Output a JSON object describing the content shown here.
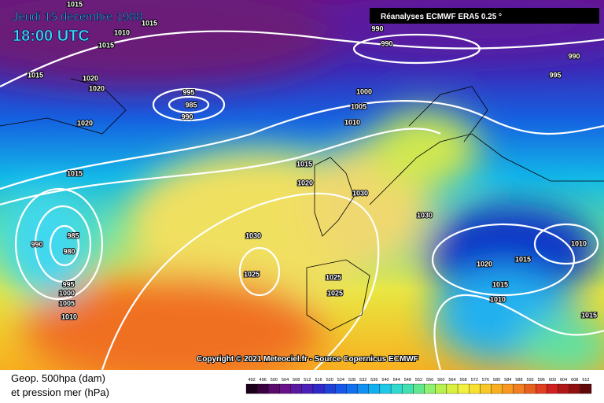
{
  "header": {
    "title": "Jeudi 15 decembre 1988",
    "time": "18:00 UTC",
    "source": "Réanalyses ECMWF ERA5 0.25 °"
  },
  "copyright": "Copyright © 2021 Meteociel.fr - Source Copernicus ECMWF",
  "legend": {
    "line1": "Geop. 500hpa (dam)",
    "line2": "et pression mer (hPa)",
    "scale": [
      492,
      496,
      500,
      504,
      508,
      512,
      516,
      520,
      524,
      528,
      532,
      536,
      540,
      544,
      548,
      552,
      556,
      560,
      564,
      568,
      572,
      576,
      580,
      584,
      588,
      592,
      596,
      600,
      604,
      608,
      612
    ]
  },
  "isobar_labels": [
    1015,
    1015,
    1010,
    1015,
    1015,
    1020,
    1020,
    995,
    985,
    990,
    1020,
    990,
    990,
    990,
    995,
    1000,
    1005,
    1010,
    1015,
    1015,
    1020,
    1030,
    1030,
    1030,
    985,
    990,
    980,
    1025,
    1025,
    1025,
    995,
    1000,
    1005,
    1010,
    1020,
    1015,
    1010,
    1015,
    1010,
    1015
  ]
}
